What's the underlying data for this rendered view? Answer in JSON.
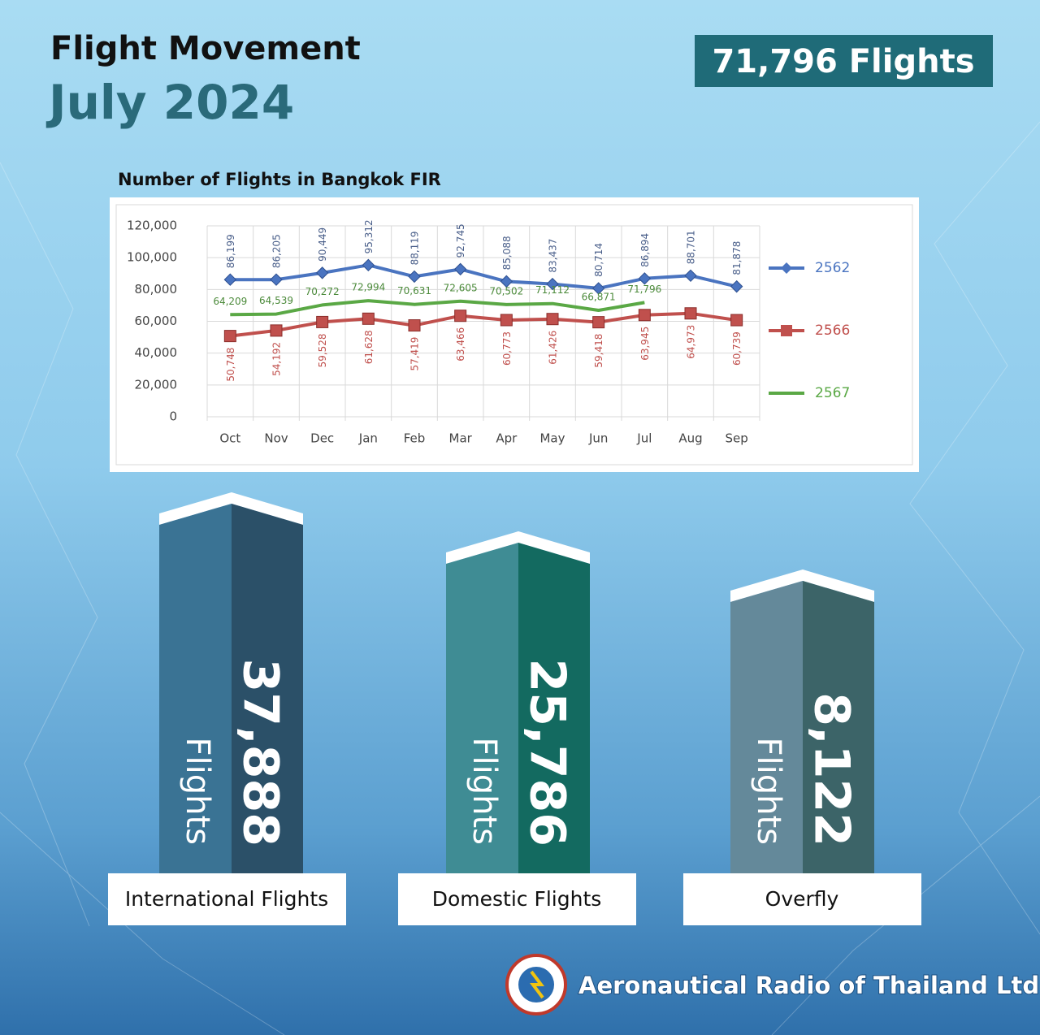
{
  "header": {
    "title": "Flight Movement",
    "period": "July 2024",
    "total": "71,796 Flights"
  },
  "chart_data": {
    "type": "line",
    "title": "Number of Flights in Bangkok FIR",
    "categories": [
      "Oct",
      "Nov",
      "Dec",
      "Jan",
      "Feb",
      "Mar",
      "Apr",
      "May",
      "Jun",
      "Jul",
      "Aug",
      "Sep"
    ],
    "series": [
      {
        "name": "2562",
        "color": "#4a74c0",
        "marker": "diamond",
        "values": [
          86199,
          86205,
          90449,
          95312,
          88119,
          92745,
          85088,
          83437,
          80714,
          86894,
          88701,
          81878
        ],
        "value_labels": [
          "86,199",
          "86,205",
          "90,449",
          "95,312",
          "88,119",
          "92,745",
          "85,088",
          "83,437",
          "80,714",
          "86,894",
          "88,701",
          "81,878"
        ]
      },
      {
        "name": "2566",
        "color": "#c0504d",
        "marker": "square",
        "values": [
          50748,
          54192,
          59528,
          61628,
          57419,
          63466,
          60773,
          61426,
          59418,
          63945,
          64973,
          60739
        ],
        "value_labels": [
          "50,748",
          "54,192",
          "59,528",
          "61,628",
          "57,419",
          "63,466",
          "60,773",
          "61,426",
          "59,418",
          "63,945",
          "64,973",
          "60,739"
        ]
      },
      {
        "name": "2567",
        "color": "#5aa845",
        "marker": "none",
        "values": [
          64209,
          64539,
          70272,
          72994,
          70631,
          72605,
          70502,
          71112,
          66871,
          71796,
          null,
          null
        ],
        "value_labels": [
          "64,209",
          "64,539",
          "70,272",
          "72,994",
          "70,631",
          "72,605",
          "70,502",
          "71,112",
          "66,871",
          "71,796",
          null,
          null
        ]
      }
    ],
    "ylim": [
      0,
      120000
    ],
    "yticks": [
      0,
      {
        "value": 20000,
        "label": "20,000"
      },
      {
        "value": 40000,
        "label": "40,000"
      },
      {
        "value": 60000,
        "label": "60,000"
      },
      {
        "value": 80000,
        "label": "80,000"
      },
      {
        "value": 100000,
        "label": "100,000"
      },
      {
        "value": 120000,
        "label": "120,000"
      }
    ],
    "grid": true,
    "legend": "right"
  },
  "breakdown": [
    {
      "value": "37,888",
      "unit": "Flights",
      "label": "International Flights"
    },
    {
      "value": "25,786",
      "unit": "Flights",
      "label": "Domestic Flights"
    },
    {
      "value": "8,122",
      "unit": "Flights",
      "label": "Overfly"
    }
  ],
  "footer": {
    "organization": "Aeronautical Radio of Thailand Ltd."
  }
}
